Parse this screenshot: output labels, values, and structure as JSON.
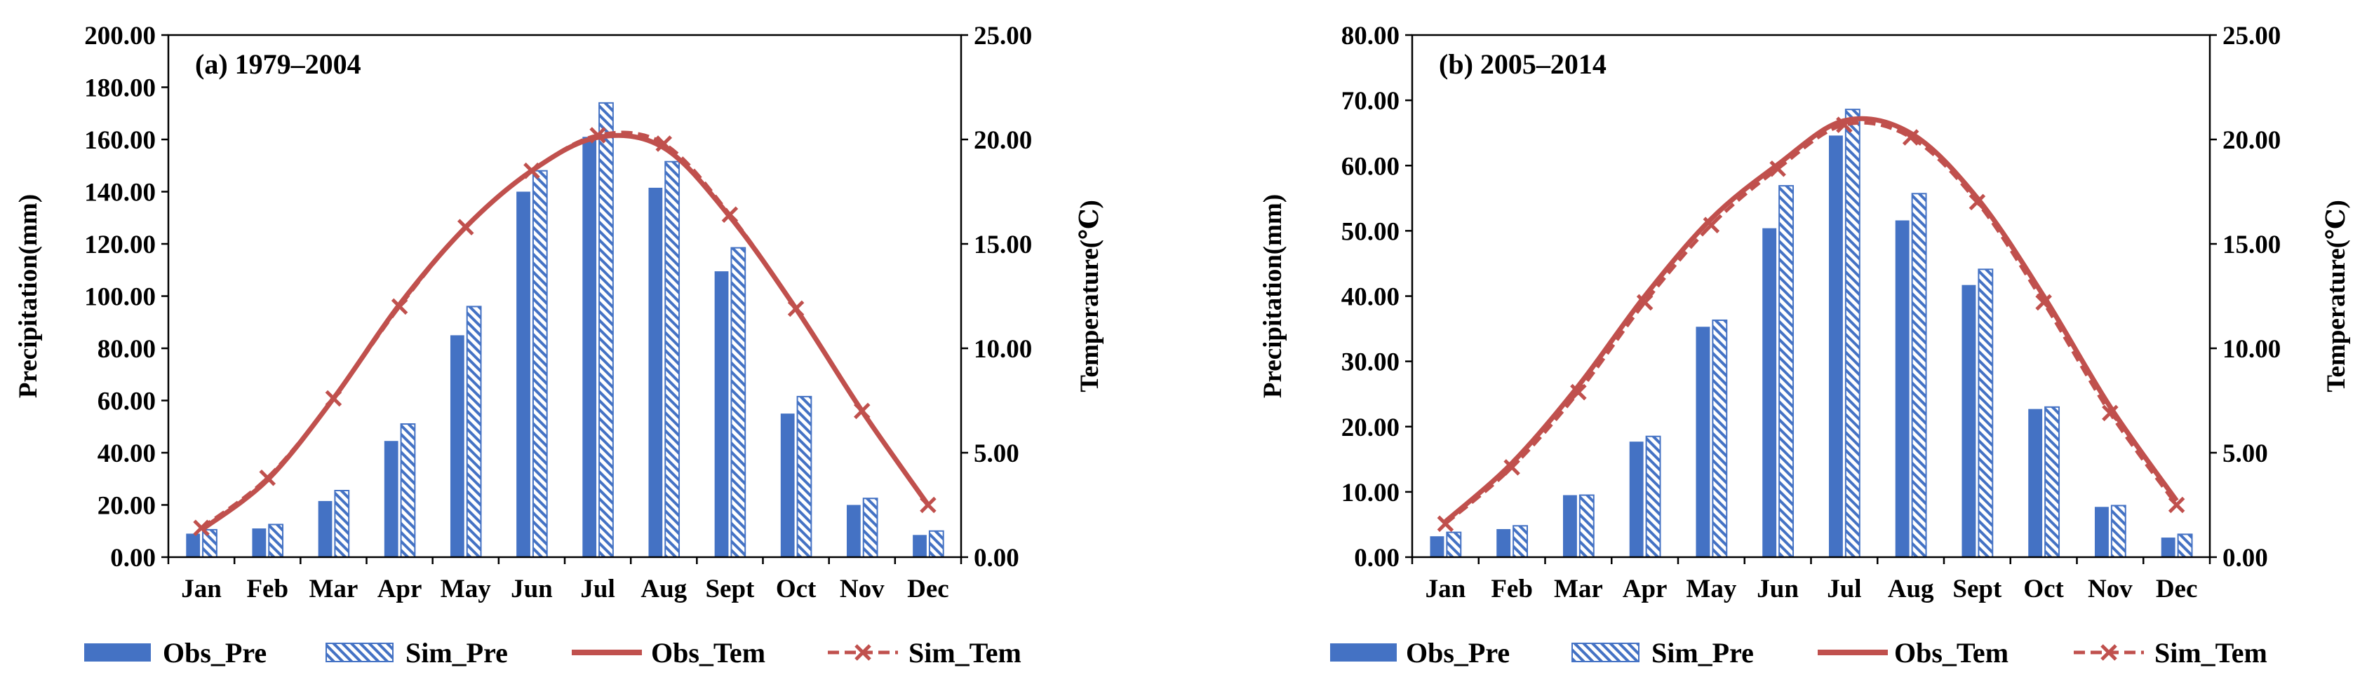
{
  "colors": {
    "obs_pre": "#4472C4",
    "sim_pre_stripe": "#4472C4",
    "obs_tem": "#C0504D",
    "sim_tem": "#C0504D",
    "axis": "#000000"
  },
  "legend": {
    "obs_pre": "Obs_Pre",
    "sim_pre": "Sim_Pre",
    "obs_tem": "Obs_Tem",
    "sim_tem": "Sim_Tem"
  },
  "chart_data": [
    {
      "type": "bar",
      "title": "(a) 1979–2004",
      "categories": [
        "Jan",
        "Feb",
        "Mar",
        "Apr",
        "May",
        "Jun",
        "Jul",
        "Aug",
        "Sept",
        "Oct",
        "Nov",
        "Dec"
      ],
      "ylabel": "Precipitation(mm)",
      "y2label": "Temperature(℃)",
      "ylim": [
        0,
        200
      ],
      "y2lim": [
        0,
        25
      ],
      "yticks": [
        "0.00",
        "20.00",
        "40.00",
        "60.00",
        "80.00",
        "100.00",
        "120.00",
        "140.00",
        "160.00",
        "180.00",
        "200.00"
      ],
      "y2ticks": [
        "0.00",
        "5.00",
        "10.00",
        "15.00",
        "20.00",
        "25.00"
      ],
      "series": [
        {
          "name": "Obs_Pre",
          "kind": "bar",
          "axis": "left",
          "values": [
            9,
            11,
            21.5,
            44.5,
            85,
            140,
            161,
            141.5,
            109.5,
            55,
            20,
            8.5
          ]
        },
        {
          "name": "Sim_Pre",
          "kind": "bar-hatched",
          "axis": "left",
          "values": [
            10.5,
            12.5,
            25.5,
            51,
            96,
            148,
            174,
            151.5,
            118.5,
            61.5,
            22.5,
            10
          ]
        },
        {
          "name": "Obs_Tem",
          "kind": "line",
          "axis": "right",
          "values": [
            1.3,
            3.7,
            7.6,
            12.1,
            15.8,
            18.5,
            20.1,
            19.6,
            16.3,
            11.9,
            7.0,
            2.5
          ]
        },
        {
          "name": "Sim_Tem",
          "kind": "line-x",
          "axis": "right",
          "values": [
            1.4,
            3.8,
            7.6,
            12.0,
            15.8,
            18.5,
            20.2,
            19.8,
            16.4,
            11.9,
            7.0,
            2.5
          ]
        }
      ]
    },
    {
      "type": "bar",
      "title": "(b) 2005–2014",
      "categories": [
        "Jan",
        "Feb",
        "Mar",
        "Apr",
        "May",
        "Jun",
        "Jul",
        "Aug",
        "Sept",
        "Oct",
        "Nov",
        "Dec"
      ],
      "ylabel": "Precipitation(mm)",
      "y2label": "Temperature(℃)",
      "ylim": [
        0,
        80
      ],
      "y2lim": [
        0,
        25
      ],
      "yticks": [
        "0.00",
        "10.00",
        "20.00",
        "30.00",
        "40.00",
        "50.00",
        "60.00",
        "70.00",
        "80.00"
      ],
      "y2ticks": [
        "0.00",
        "5.00",
        "10.00",
        "15.00",
        "20.00",
        "25.00"
      ],
      "series": [
        {
          "name": "Obs_Pre",
          "kind": "bar",
          "axis": "left",
          "values": [
            3.2,
            4.3,
            9.5,
            17.7,
            35.3,
            50.4,
            64.6,
            51.6,
            41.7,
            22.7,
            7.7,
            3.0
          ]
        },
        {
          "name": "Sim_Pre",
          "kind": "bar-hatched",
          "axis": "left",
          "values": [
            3.8,
            4.8,
            9.5,
            18.5,
            36.3,
            56.9,
            68.6,
            55.7,
            44.1,
            23.0,
            7.9,
            3.5
          ]
        },
        {
          "name": "Obs_Tem",
          "kind": "line",
          "axis": "right",
          "values": [
            1.7,
            4.5,
            8.2,
            12.5,
            16.2,
            18.8,
            20.9,
            20.3,
            17.2,
            12.5,
            7.2,
            2.7
          ]
        },
        {
          "name": "Sim_Tem",
          "kind": "line-x",
          "axis": "right",
          "values": [
            1.6,
            4.3,
            7.9,
            12.2,
            15.9,
            18.6,
            20.7,
            20.1,
            17.0,
            12.2,
            6.9,
            2.5
          ]
        }
      ]
    }
  ]
}
